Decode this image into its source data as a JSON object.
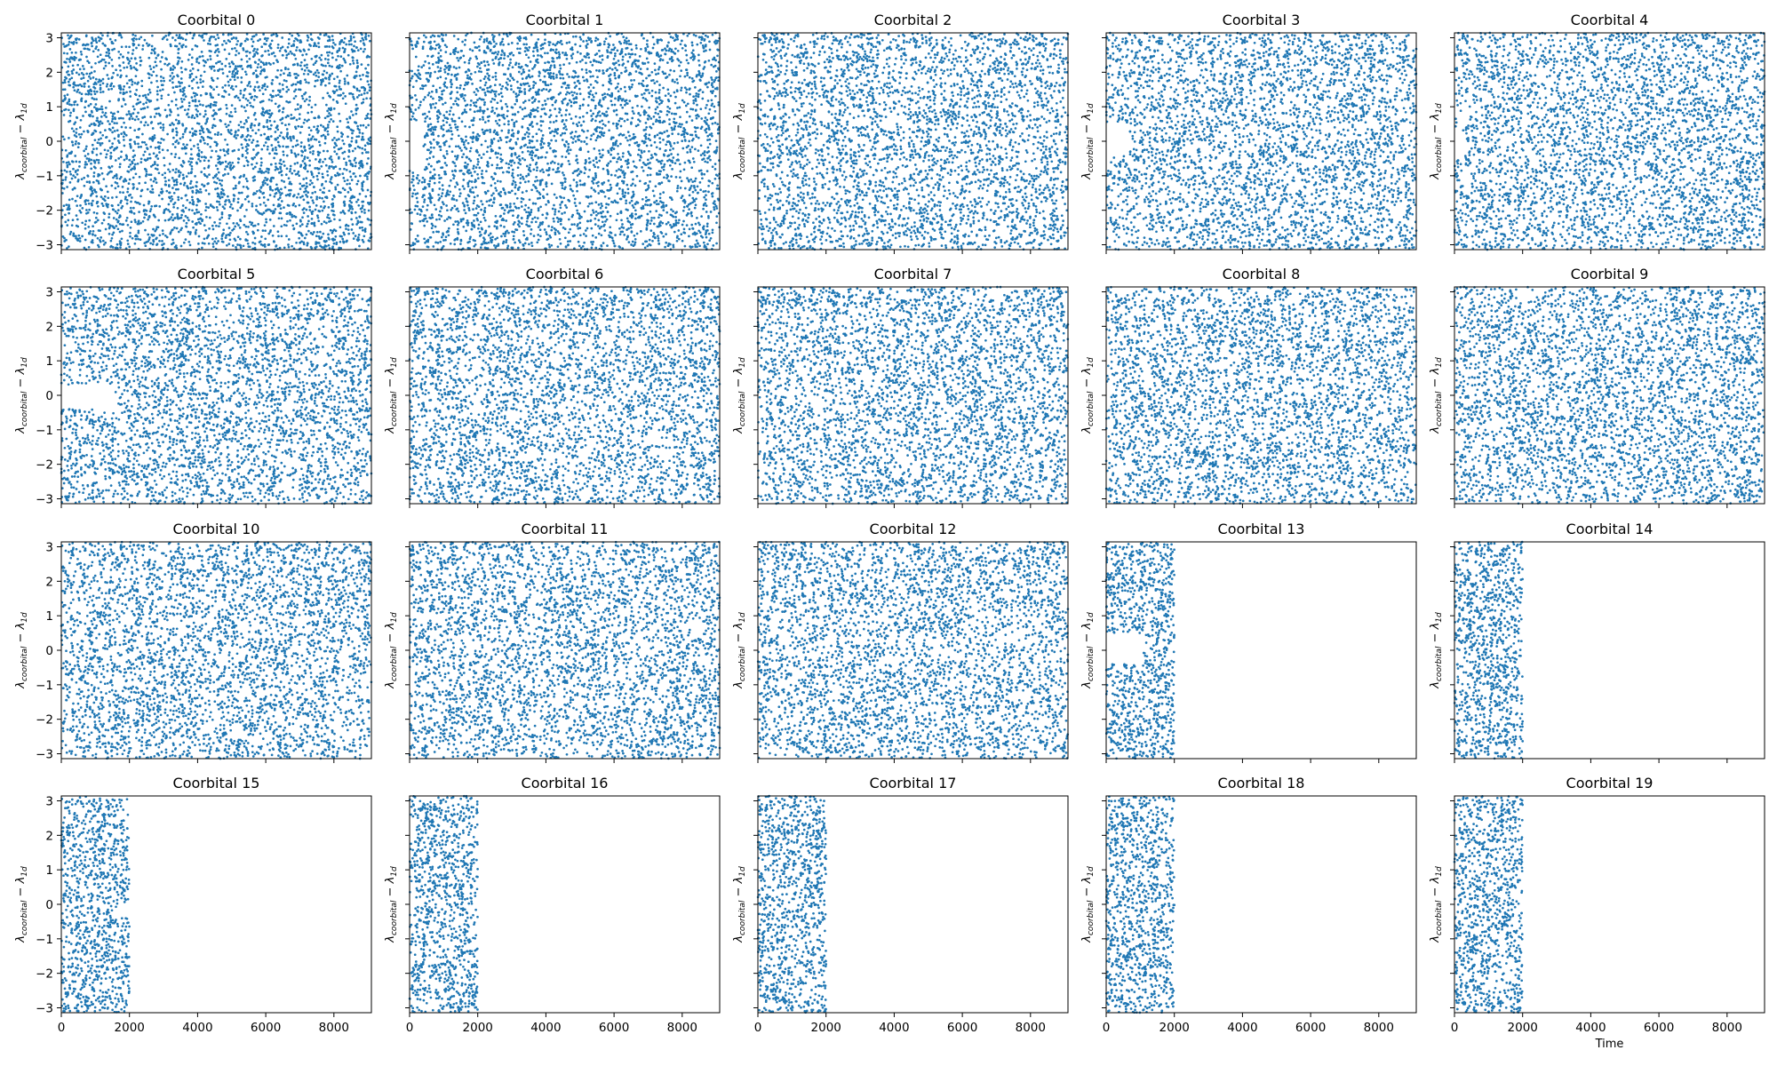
{
  "chart_data": {
    "type": "scatter",
    "layout": "5x4 grid of small multiples, shared x and y axes",
    "marker_color": "#1f77b4",
    "xlabel": "Time",
    "ylabel": "λ_coorbital − λ_1d",
    "ylabel_parts": {
      "main": "λ",
      "sub1": "coorbital",
      "minus": " − λ",
      "sub2": "1d"
    },
    "xlim": [
      0,
      9100
    ],
    "ylim": [
      -3.1416,
      3.1416
    ],
    "xticks": [
      0,
      2000,
      4000,
      6000,
      8000
    ],
    "yticks": [
      -3,
      -2,
      -1,
      0,
      1,
      2,
      3
    ],
    "points_per_panel_full": 3600,
    "panels": [
      {
        "title": "Coorbital 0",
        "x_range": [
          0,
          9100
        ],
        "gaps": [
          [
            0,
            150,
            0.2,
            0.75
          ]
        ]
      },
      {
        "title": "Coorbital 1",
        "x_range": [
          0,
          9100
        ],
        "gaps": [
          [
            0,
            400,
            -0.8,
            0.6
          ]
        ]
      },
      {
        "title": "Coorbital 2",
        "x_range": [
          0,
          9100
        ],
        "gaps": []
      },
      {
        "title": "Coorbital 3",
        "x_range": [
          0,
          9100
        ],
        "gaps": [
          [
            0,
            700,
            -0.4,
            0.5
          ]
        ]
      },
      {
        "title": "Coorbital 4",
        "x_range": [
          0,
          9100
        ],
        "gaps": [
          [
            0,
            350,
            -0.3,
            0.3
          ]
        ]
      },
      {
        "title": "Coorbital 5",
        "x_range": [
          0,
          9100
        ],
        "gaps": [
          [
            0,
            1500,
            -0.4,
            0.3
          ]
        ]
      },
      {
        "title": "Coorbital 6",
        "x_range": [
          0,
          9100
        ],
        "gaps": []
      },
      {
        "title": "Coorbital 7",
        "x_range": [
          0,
          9100
        ],
        "gaps": []
      },
      {
        "title": "Coorbital 8",
        "x_range": [
          0,
          9100
        ],
        "gaps": []
      },
      {
        "title": "Coorbital 9",
        "x_range": [
          0,
          9100
        ],
        "gaps": []
      },
      {
        "title": "Coorbital 10",
        "x_range": [
          0,
          9100
        ],
        "gaps": []
      },
      {
        "title": "Coorbital 11",
        "x_range": [
          0,
          9100
        ],
        "gaps": []
      },
      {
        "title": "Coorbital 12",
        "x_range": [
          0,
          9100
        ],
        "gaps": []
      },
      {
        "title": "Coorbital 13",
        "x_range": [
          0,
          2000
        ],
        "gaps": [
          [
            0,
            1100,
            -0.4,
            0.5
          ]
        ]
      },
      {
        "title": "Coorbital 14",
        "x_range": [
          0,
          2000
        ],
        "gaps": [
          [
            0,
            250,
            -0.4,
            0.0
          ]
        ]
      },
      {
        "title": "Coorbital 15",
        "x_range": [
          0,
          2000
        ],
        "gaps": []
      },
      {
        "title": "Coorbital 16",
        "x_range": [
          0,
          2000
        ],
        "gaps": [
          [
            0,
            150,
            -0.3,
            0.2
          ]
        ]
      },
      {
        "title": "Coorbital 17",
        "x_range": [
          0,
          2000
        ],
        "gaps": []
      },
      {
        "title": "Coorbital 18",
        "x_range": [
          0,
          2000
        ],
        "gaps": []
      },
      {
        "title": "Coorbital 19",
        "x_range": [
          0,
          2000
        ],
        "gaps": []
      }
    ]
  }
}
